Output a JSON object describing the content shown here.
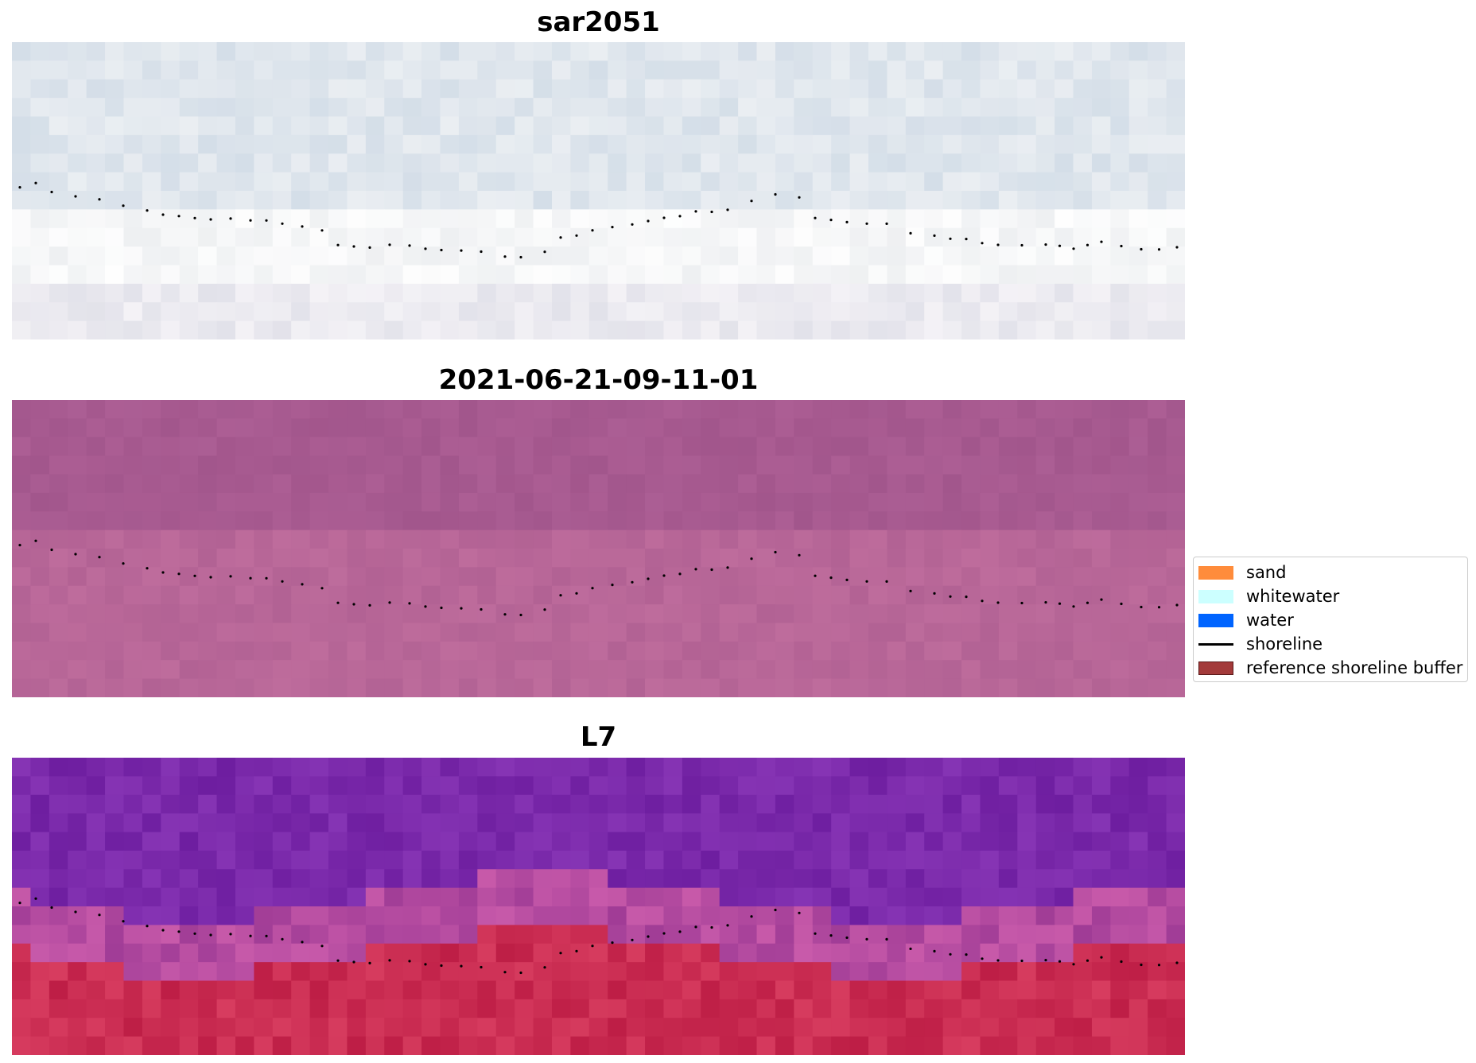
{
  "panels": [
    {
      "title": "sar2051",
      "palette": "sar"
    },
    {
      "title": "2021-06-21-09-11-01",
      "palette": "magenta"
    },
    {
      "title": "L7",
      "palette": "l7"
    }
  ],
  "legend": {
    "items": [
      {
        "label": "sand",
        "kind": "patch",
        "color": "#ff8c3b",
        "edge": "#ff8c3b"
      },
      {
        "label": "whitewater",
        "kind": "patch",
        "color": "#ccffff",
        "edge": "#ccffff"
      },
      {
        "label": "water",
        "kind": "patch",
        "color": "#0064ff",
        "edge": "#0064ff"
      },
      {
        "label": "shoreline",
        "kind": "line",
        "color": "#000000"
      },
      {
        "label": "reference shoreline buffer",
        "kind": "patch",
        "color": "#a33a3a",
        "edge": "#5a1a1a"
      }
    ]
  },
  "colors": {
    "shoreline_dots": "#000000",
    "legend_border": "#cccccc"
  }
}
